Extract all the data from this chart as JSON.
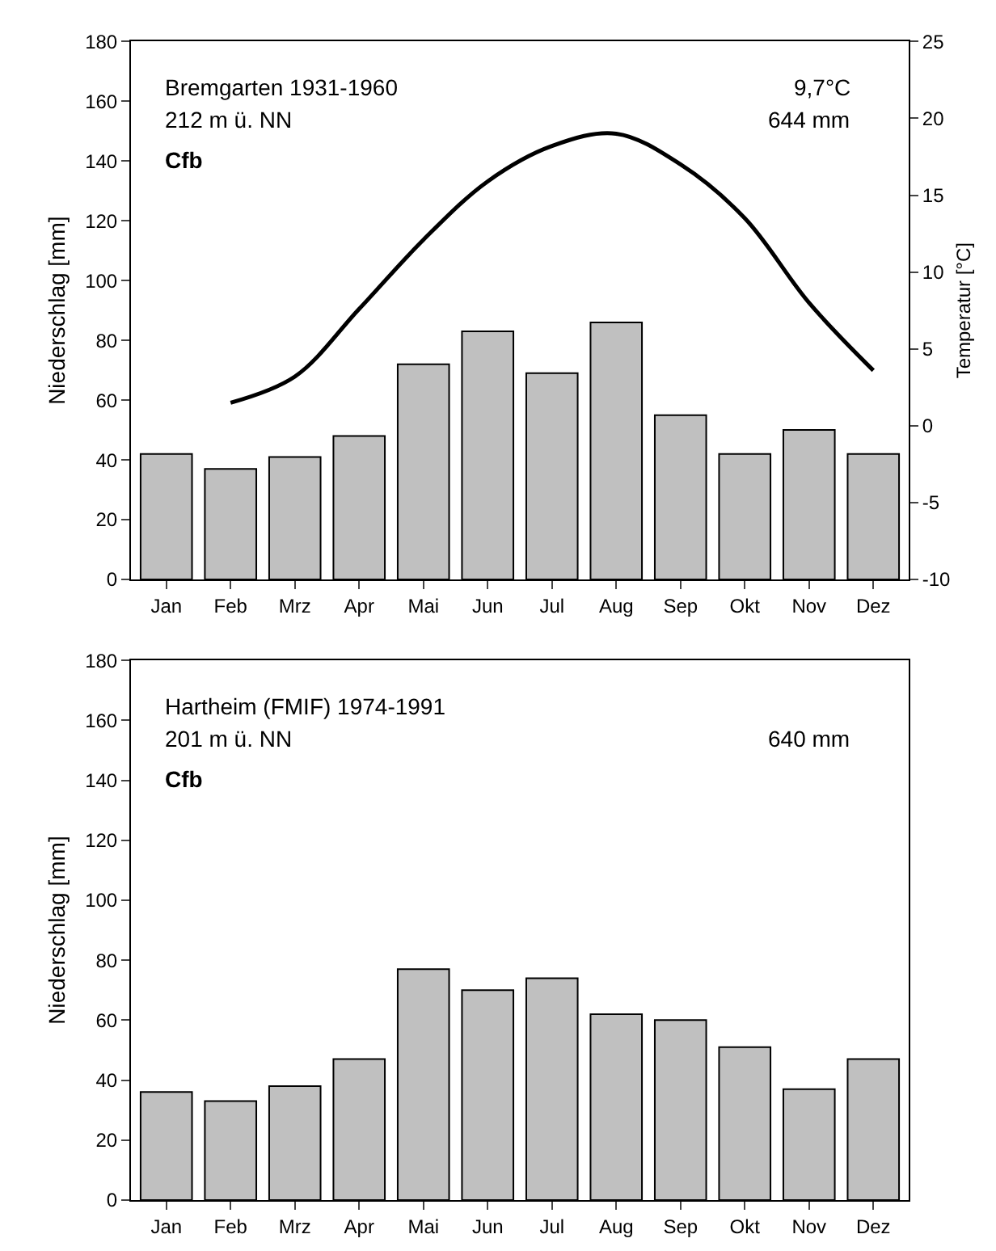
{
  "chart_data": [
    {
      "type": "bar",
      "ylabel": "Niederschlag [mm]",
      "y2label": "Temperatur [°C]",
      "categories": [
        "Jan",
        "Feb",
        "Mrz",
        "Apr",
        "Mai",
        "Jun",
        "Jul",
        "Aug",
        "Sep",
        "Okt",
        "Nov",
        "Dez"
      ],
      "series": [
        {
          "color": "#c0c0c0",
          "values": [
            42,
            37,
            41,
            48,
            72,
            83,
            69,
            86,
            55,
            42,
            50,
            42
          ]
        },
        {
          "type": "line",
          "axis": "y2",
          "color": "#000000",
          "values": [
            null,
            1.5,
            3.2,
            7.6,
            12.1,
            15.9,
            18.2,
            19.0,
            17.0,
            13.5,
            8.0,
            3.6
          ]
        }
      ],
      "ylim": [
        0,
        180
      ],
      "yticks": [
        0,
        20,
        40,
        60,
        80,
        100,
        120,
        140,
        160,
        180
      ],
      "y2lim": [
        -10,
        25
      ],
      "y2ticks": [
        -10,
        -5,
        0,
        5,
        10,
        15,
        20,
        25
      ],
      "annotations": [
        "Bremgarten 1931-1960",
        "212 m ü. NN",
        "Cfb",
        "9,7°C",
        "644 mm"
      ],
      "marker": "none",
      "line_style": "solid"
    },
    {
      "type": "bar",
      "ylabel": "Niederschlag [mm]",
      "categories": [
        "Jan",
        "Feb",
        "Mrz",
        "Apr",
        "Mai",
        "Jun",
        "Jul",
        "Aug",
        "Sep",
        "Okt",
        "Nov",
        "Dez"
      ],
      "series": [
        {
          "color": "#c0c0c0",
          "values": [
            36,
            33,
            38,
            47,
            77,
            70,
            74,
            62,
            60,
            51,
            37,
            47
          ]
        }
      ],
      "ylim": [
        0,
        180
      ],
      "yticks": [
        0,
        20,
        40,
        60,
        80,
        100,
        120,
        140,
        160,
        180
      ],
      "annotations": [
        "Hartheim (FMIF) 1974-1991",
        "201 m ü. NN",
        "Cfb",
        "640 mm"
      ]
    }
  ]
}
